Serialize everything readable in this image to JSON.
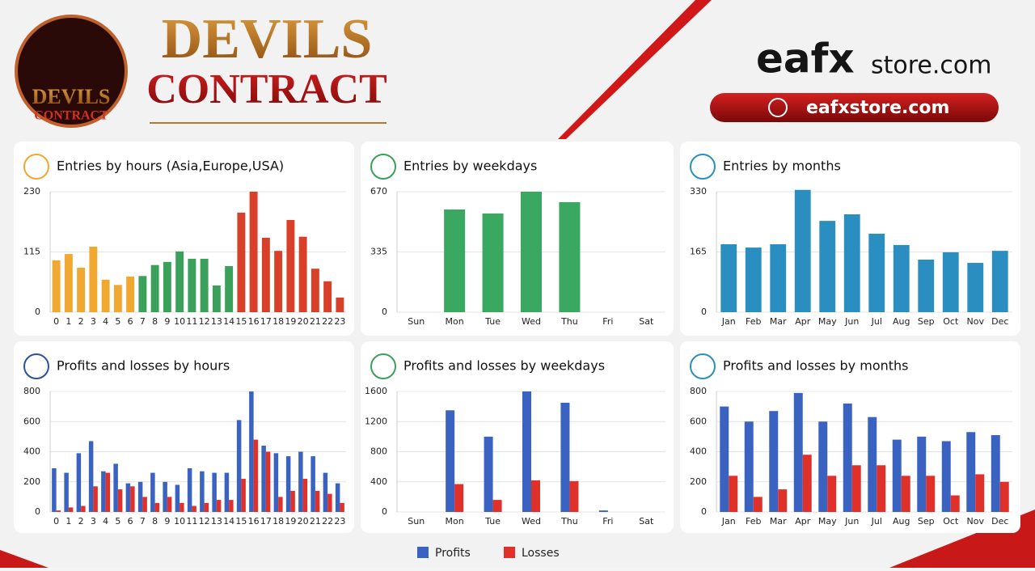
{
  "header": {
    "emblem_line1": "DEVILS",
    "emblem_line2": "CONTRACT",
    "title_line1": "DEVILS",
    "title_line2": "CONTRACT",
    "store_logo_main": "eafx",
    "store_logo_suffix": "store.com",
    "store_url": "eafxstore.com"
  },
  "legend": [
    {
      "name": "Profits",
      "color": "#3a62c0"
    },
    {
      "name": "Losses",
      "color": "#e0302a"
    }
  ],
  "chart_data": [
    {
      "type": "bar",
      "title": "Entries by hours (Asia,Europe,USA)",
      "categories": [
        "0",
        "1",
        "2",
        "3",
        "4",
        "5",
        "6",
        "7",
        "8",
        "9",
        "10",
        "11",
        "12",
        "13",
        "14",
        "15",
        "16",
        "17",
        "18",
        "19",
        "20",
        "21",
        "22",
        "23"
      ],
      "values": [
        99,
        111,
        85,
        125,
        62,
        52,
        68,
        69,
        90,
        96,
        116,
        102,
        102,
        51,
        88,
        190,
        230,
        142,
        117,
        176,
        144,
        83,
        59,
        28
      ],
      "colors": [
        "#f0a830",
        "#f0a830",
        "#f0a830",
        "#f0a830",
        "#f0a830",
        "#f0a830",
        "#f0a830",
        "#3aa05a",
        "#3aa05a",
        "#3aa05a",
        "#3aa05a",
        "#3aa05a",
        "#3aa05a",
        "#3aa05a",
        "#3aa05a",
        "#d8402a",
        "#d8402a",
        "#d8402a",
        "#d8402a",
        "#d8402a",
        "#d8402a",
        "#d8402a",
        "#d8402a",
        "#d8402a"
      ],
      "ylim": [
        0,
        230
      ],
      "yticks": [
        0,
        115,
        230
      ]
    },
    {
      "type": "bar",
      "title": "Entries by weekdays",
      "categories": [
        "Sun",
        "Mon",
        "Tue",
        "Wed",
        "Thu",
        "Fri",
        "Sat"
      ],
      "values": [
        0,
        571,
        549,
        670,
        612,
        0,
        0
      ],
      "color": "#3aa860",
      "ylim": [
        0,
        670
      ],
      "yticks": [
        0,
        335,
        670
      ]
    },
    {
      "type": "bar",
      "title": "Entries by months",
      "categories": [
        "Jan",
        "Feb",
        "Mar",
        "Apr",
        "May",
        "Jun",
        "Jul",
        "Aug",
        "Sep",
        "Oct",
        "Nov",
        "Dec"
      ],
      "values": [
        186,
        177,
        186,
        335,
        250,
        268,
        215,
        184,
        144,
        164,
        135,
        168
      ],
      "color": "#2a8fc0",
      "ylim": [
        0,
        330
      ],
      "yticks": [
        0,
        165,
        330
      ]
    },
    {
      "type": "bar",
      "title": "Profits and losses by hours",
      "categories": [
        "0",
        "1",
        "2",
        "3",
        "4",
        "5",
        "6",
        "7",
        "8",
        "9",
        "10",
        "11",
        "12",
        "13",
        "14",
        "15",
        "16",
        "17",
        "18",
        "19",
        "20",
        "21",
        "22",
        "23"
      ],
      "series": [
        {
          "values": [
            290,
            260,
            390,
            470,
            270,
            320,
            190,
            200,
            260,
            200,
            180,
            290,
            270,
            260,
            260,
            610,
            800,
            440,
            390,
            370,
            400,
            370,
            260,
            190
          ]
        },
        {
          "values": [
            10,
            30,
            40,
            170,
            260,
            150,
            170,
            100,
            60,
            100,
            60,
            40,
            60,
            80,
            80,
            220,
            480,
            400,
            100,
            140,
            220,
            140,
            120,
            60
          ]
        }
      ],
      "ylim": [
        0,
        800
      ],
      "yticks": [
        0,
        200,
        400,
        600,
        800
      ]
    },
    {
      "type": "bar",
      "title": "Profits and losses by weekdays",
      "categories": [
        "Sun",
        "Mon",
        "Tue",
        "Wed",
        "Thu",
        "Fri",
        "Sat"
      ],
      "series": [
        {
          "values": [
            0,
            1350,
            1000,
            1600,
            1450,
            20,
            0
          ]
        },
        {
          "values": [
            0,
            370,
            160,
            420,
            410,
            0,
            0
          ]
        }
      ],
      "ylim": [
        0,
        1600
      ],
      "yticks": [
        0,
        400,
        800,
        1200,
        1600
      ]
    },
    {
      "type": "bar",
      "title": "Profits and losses by months",
      "categories": [
        "Jan",
        "Feb",
        "Mar",
        "Apr",
        "May",
        "Jun",
        "Jul",
        "Aug",
        "Sep",
        "Oct",
        "Nov",
        "Dec"
      ],
      "series": [
        {
          "values": [
            700,
            600,
            670,
            790,
            600,
            720,
            630,
            480,
            500,
            470,
            530,
            510
          ]
        },
        {
          "values": [
            240,
            100,
            150,
            380,
            240,
            310,
            310,
            240,
            240,
            110,
            250,
            200
          ]
        }
      ],
      "ylim": [
        0,
        800
      ],
      "yticks": [
        0,
        200,
        400,
        600,
        800
      ]
    }
  ]
}
